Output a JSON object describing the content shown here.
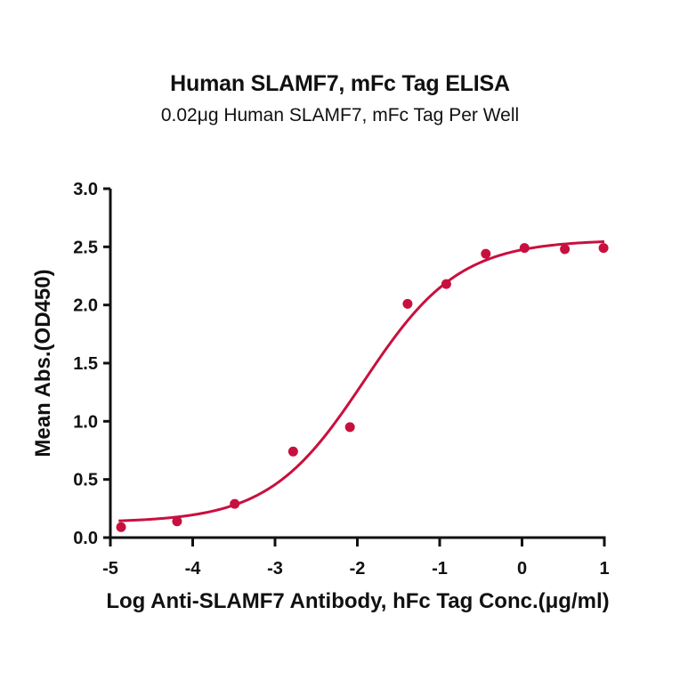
{
  "chart_data": {
    "type": "scatter",
    "title": "Human SLAMF7, mFc Tag ELISA",
    "subtitle": "0.02μg Human SLAMF7, mFc Tag Per Well",
    "xlabel": "Log Anti-SLAMF7 Antibody, hFc Tag Conc.(μg/ml)",
    "ylabel": "Mean Abs.(OD450)",
    "xlim": [
      -5,
      1
    ],
    "ylim": [
      0,
      3.0
    ],
    "xticks": [
      "-5",
      "-4",
      "-3",
      "-2",
      "-1",
      "0",
      "1"
    ],
    "yticks": [
      "0.0",
      "0.5",
      "1.0",
      "1.5",
      "2.0",
      "2.5",
      "3.0"
    ],
    "grid": false,
    "legend": null,
    "color": "#C8103E",
    "series": [
      {
        "name": "Mean Abs.(OD450)",
        "x": [
          -4.87,
          -4.19,
          -3.49,
          -2.78,
          -2.09,
          -1.39,
          -0.92,
          -0.44,
          0.03,
          0.52,
          0.99
        ],
        "y": [
          0.09,
          0.14,
          0.29,
          0.74,
          0.95,
          2.01,
          2.18,
          2.44,
          2.49,
          2.48,
          2.49
        ]
      }
    ],
    "fit": {
      "model": "4PL",
      "bottom": 0.13,
      "top": 2.56,
      "logEC50": -1.92,
      "hill": 0.75,
      "x_range": [
        -4.9,
        1.0
      ]
    }
  }
}
